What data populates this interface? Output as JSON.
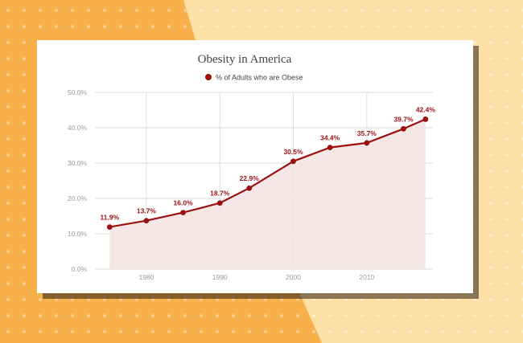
{
  "colors": {
    "background": "#f7b04a",
    "background_light": "#fde0a6",
    "series": "#9b1111",
    "fill": "#f5e3e3",
    "grid": "#dddddd",
    "axis_text": "#9a9a9a"
  },
  "chart_data": {
    "type": "line",
    "title": "Obesity in America",
    "xlabel": "",
    "ylabel": "",
    "legend_position": "top",
    "grid": true,
    "area_fill": true,
    "xlim": [
      1973,
      2019
    ],
    "ylim": [
      0,
      50
    ],
    "x_ticks": [
      1980,
      1990,
      2000,
      2010
    ],
    "y_ticks": [
      "0.0%",
      "10.0%",
      "20.0%",
      "30.0%",
      "40.0%",
      "50.0%"
    ],
    "y_tick_values": [
      0,
      10,
      20,
      30,
      40,
      50
    ],
    "series": [
      {
        "name": "% of Adults who are Obese",
        "x": [
          1975,
          1980,
          1985,
          1990,
          1994,
          2000,
          2005,
          2010,
          2015,
          2018
        ],
        "values": [
          11.9,
          13.7,
          16.0,
          18.7,
          22.9,
          30.5,
          34.4,
          35.7,
          39.7,
          42.4
        ],
        "labels": [
          "11.9%",
          "13.7%",
          "16.0%",
          "18.7%",
          "22.9%",
          "30.5%",
          "34.4%",
          "35.7%",
          "39.7%",
          "42.4%"
        ]
      }
    ]
  }
}
